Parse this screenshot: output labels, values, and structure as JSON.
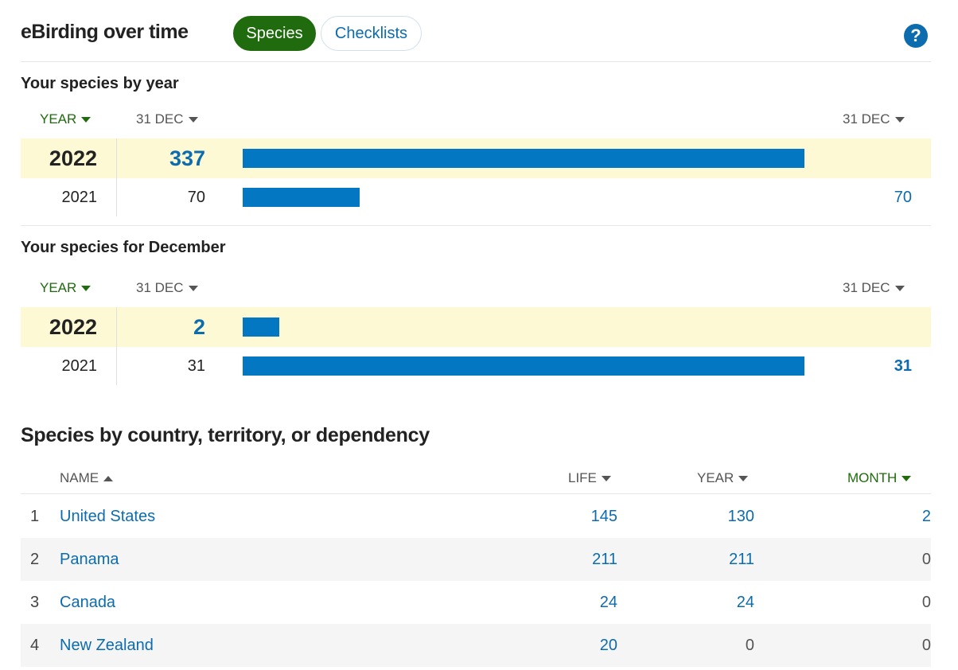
{
  "header": {
    "title": "eBirding over time",
    "tabs": [
      {
        "label": "Species",
        "active": true
      },
      {
        "label": "Checklists",
        "active": false
      }
    ],
    "help_glyph": "?",
    "help_icon": "question-circle-icon"
  },
  "by_year": {
    "title": "Your species by year",
    "col_year": "YEAR",
    "col_date": "31 DEC",
    "col_date_right": "31 DEC",
    "rows": [
      {
        "year": "2022",
        "value": "337",
        "bar_value": 337,
        "end_label": "",
        "highlight": true
      },
      {
        "year": "2021",
        "value": "70",
        "bar_value": 70,
        "end_label": "70",
        "highlight": false
      }
    ],
    "max": 337
  },
  "by_month": {
    "title": "Your species for December",
    "col_year": "YEAR",
    "col_date": "31 DEC",
    "col_date_right": "31 DEC",
    "rows": [
      {
        "year": "2022",
        "value": "2",
        "bar_value": 2,
        "end_label": "",
        "highlight": true
      },
      {
        "year": "2021",
        "value": "31",
        "bar_value": 31,
        "end_label": "31",
        "highlight": false
      }
    ],
    "max": 31
  },
  "countries": {
    "title": "Species by country, territory, or dependency",
    "headers": {
      "name": "NAME",
      "life": "LIFE",
      "year": "YEAR",
      "month": "MONTH"
    },
    "rows": [
      {
        "rank": "1",
        "name": "United States",
        "life": "145",
        "year": "130",
        "month": "2"
      },
      {
        "rank": "2",
        "name": "Panama",
        "life": "211",
        "year": "211",
        "month": "0"
      },
      {
        "rank": "3",
        "name": "Canada",
        "life": "24",
        "year": "24",
        "month": "0"
      },
      {
        "rank": "4",
        "name": "New Zealand",
        "life": "20",
        "year": "0",
        "month": "0"
      }
    ]
  },
  "colors": {
    "accent_green": "#1f6b0d",
    "link_blue": "#0c6cad",
    "bar_blue": "#0477c3",
    "highlight_row": "#fdf9d5"
  }
}
